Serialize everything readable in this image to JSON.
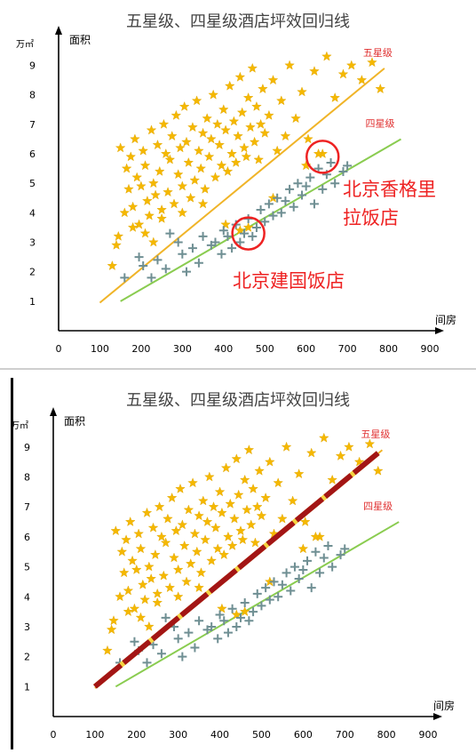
{
  "chart_data": [
    {
      "type": "scatter",
      "title": "五星级、四星级酒店坪效回归线",
      "xlabel": "间房",
      "ylabel": "面积",
      "y_unit": "万㎡",
      "xlim": [
        0,
        900
      ],
      "ylim": [
        0,
        9.5
      ],
      "x_ticks": [
        "0",
        "100",
        "200",
        "300",
        "400",
        "500",
        "600",
        "700",
        "800",
        "900"
      ],
      "y_ticks": [
        "1",
        "2",
        "3",
        "4",
        "5",
        "6",
        "7",
        "8",
        "9"
      ],
      "series": [
        {
          "name": "五星级",
          "marker": "star",
          "color": "#f5b800",
          "points": [
            [
              150,
              6.2
            ],
            [
              165,
              5.5
            ],
            [
              170,
              4.8
            ],
            [
              175,
              5.9
            ],
            [
              180,
              4.2
            ],
            [
              185,
              6.5
            ],
            [
              190,
              5.2
            ],
            [
              195,
              3.6
            ],
            [
              200,
              4.9
            ],
            [
              205,
              6.1
            ],
            [
              210,
              5.6
            ],
            [
              215,
              4.4
            ],
            [
              220,
              3.9
            ],
            [
              225,
              6.8
            ],
            [
              230,
              5.0
            ],
            [
              235,
              4.6
            ],
            [
              240,
              6.3
            ],
            [
              245,
              5.4
            ],
            [
              250,
              3.8
            ],
            [
              255,
              7.0
            ],
            [
              260,
              6.0
            ],
            [
              265,
              4.7
            ],
            [
              270,
              5.8
            ],
            [
              275,
              6.6
            ],
            [
              280,
              4.3
            ],
            [
              285,
              7.3
            ],
            [
              290,
              5.3
            ],
            [
              295,
              6.2
            ],
            [
              300,
              4.9
            ],
            [
              305,
              7.6
            ],
            [
              310,
              6.4
            ],
            [
              315,
              5.7
            ],
            [
              320,
              4.5
            ],
            [
              325,
              6.9
            ],
            [
              330,
              5.1
            ],
            [
              335,
              7.8
            ],
            [
              340,
              6.1
            ],
            [
              345,
              5.5
            ],
            [
              350,
              6.7
            ],
            [
              355,
              4.8
            ],
            [
              360,
              7.2
            ],
            [
              365,
              5.9
            ],
            [
              370,
              6.5
            ],
            [
              375,
              8.0
            ],
            [
              380,
              5.2
            ],
            [
              385,
              7.0
            ],
            [
              390,
              6.3
            ],
            [
              395,
              5.6
            ],
            [
              400,
              7.5
            ],
            [
              405,
              6.8
            ],
            [
              410,
              5.4
            ],
            [
              415,
              8.3
            ],
            [
              420,
              6.0
            ],
            [
              425,
              7.1
            ],
            [
              430,
              5.7
            ],
            [
              435,
              6.6
            ],
            [
              440,
              8.6
            ],
            [
              445,
              7.4
            ],
            [
              450,
              6.2
            ],
            [
              455,
              5.9
            ],
            [
              460,
              7.9
            ],
            [
              465,
              6.9
            ],
            [
              470,
              8.9
            ],
            [
              475,
              6.4
            ],
            [
              480,
              7.6
            ],
            [
              485,
              5.8
            ],
            [
              490,
              7.0
            ],
            [
              495,
              8.2
            ],
            [
              500,
              6.7
            ],
            [
              510,
              7.3
            ],
            [
              520,
              8.5
            ],
            [
              530,
              6.1
            ],
            [
              540,
              7.8
            ],
            [
              550,
              6.6
            ],
            [
              560,
              9.0
            ],
            [
              575,
              7.2
            ],
            [
              590,
              8.1
            ],
            [
              605,
              6.5
            ],
            [
              620,
              8.8
            ],
            [
              640,
              6.0
            ],
            [
              650,
              9.3
            ],
            [
              670,
              7.9
            ],
            [
              690,
              8.7
            ],
            [
              710,
              9.0
            ],
            [
              735,
              8.5
            ],
            [
              760,
              9.1
            ],
            [
              780,
              8.2
            ],
            [
              130,
              2.2
            ],
            [
              145,
              3.2
            ],
            [
              160,
              4.0
            ],
            [
              140,
              2.9
            ],
            [
              210,
              3.3
            ],
            [
              230,
              3.0
            ],
            [
              180,
              3.5
            ],
            [
              250,
              4.1
            ],
            [
              300,
              4.0
            ],
            [
              350,
              4.3
            ],
            [
              405,
              3.6
            ],
            [
              440,
              3.4
            ],
            [
              460,
              3.5
            ],
            [
              520,
              4.5
            ],
            [
              600,
              5.6
            ],
            [
              630,
              6.0
            ]
          ]
        },
        {
          "name": "四星级",
          "marker": "plus",
          "color": "#6f8f93",
          "points": [
            [
              160,
              1.8
            ],
            [
              195,
              2.5
            ],
            [
              205,
              2.2
            ],
            [
              225,
              1.8
            ],
            [
              240,
              2.4
            ],
            [
              260,
              2.1
            ],
            [
              270,
              3.3
            ],
            [
              290,
              3.0
            ],
            [
              300,
              2.6
            ],
            [
              310,
              2.0
            ],
            [
              325,
              2.8
            ],
            [
              340,
              2.3
            ],
            [
              350,
              3.2
            ],
            [
              370,
              2.9
            ],
            [
              380,
              3.0
            ],
            [
              395,
              2.6
            ],
            [
              400,
              3.4
            ],
            [
              410,
              3.2
            ],
            [
              420,
              2.8
            ],
            [
              430,
              3.6
            ],
            [
              440,
              3.0
            ],
            [
              450,
              3.3
            ],
            [
              460,
              3.8
            ],
            [
              470,
              3.2
            ],
            [
              480,
              3.5
            ],
            [
              490,
              4.1
            ],
            [
              500,
              3.7
            ],
            [
              510,
              4.3
            ],
            [
              520,
              3.9
            ],
            [
              530,
              4.5
            ],
            [
              540,
              4.0
            ],
            [
              550,
              4.4
            ],
            [
              560,
              4.8
            ],
            [
              570,
              4.2
            ],
            [
              580,
              5.0
            ],
            [
              590,
              4.6
            ],
            [
              600,
              4.9
            ],
            [
              610,
              5.2
            ],
            [
              620,
              4.3
            ],
            [
              630,
              5.5
            ],
            [
              640,
              4.8
            ],
            [
              650,
              5.3
            ],
            [
              660,
              5.7
            ],
            [
              670,
              5.0
            ],
            [
              690,
              5.4
            ],
            [
              700,
              5.6
            ]
          ]
        }
      ],
      "regression_lines": [
        {
          "name": "五星级",
          "color": "#f0b428",
          "from": [
            100,
            0.95
          ],
          "to": [
            790,
            8.9
          ]
        },
        {
          "name": "四星级",
          "color": "#8acc50",
          "from": [
            150,
            1.0
          ],
          "to": [
            830,
            6.5
          ]
        }
      ],
      "annotations": [
        {
          "text": "北京香格里\n拉饭店",
          "color": "#ee2222",
          "circle_at": [
            640,
            5.9
          ]
        },
        {
          "text": "北京建国饭店",
          "color": "#ee2222",
          "circle_at": [
            460,
            3.3
          ]
        }
      ],
      "bottom_panel_extra_line": {
        "color": "#a31515",
        "dash_color": "#f5d442",
        "from": [
          100,
          1.0
        ],
        "to": [
          780,
          8.8
        ]
      }
    }
  ]
}
